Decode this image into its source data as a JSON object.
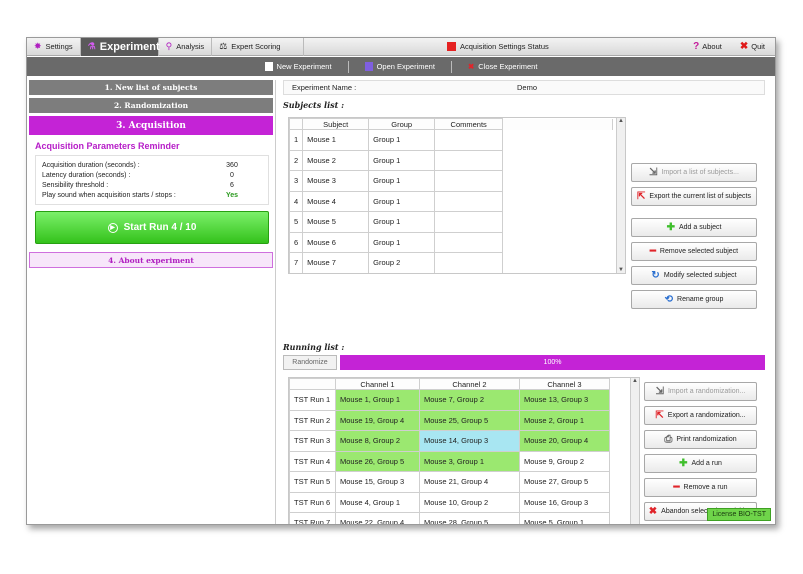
{
  "tabs": [
    {
      "label": "Settings",
      "icon": "gear-icon"
    },
    {
      "label": "Experiment",
      "icon": "flask-icon",
      "active": true
    },
    {
      "label": "Analysis",
      "icon": "magnifier-icon"
    },
    {
      "label": "Expert Scoring",
      "icon": "scale-icon"
    }
  ],
  "status": {
    "label": "Acquisition Settings Status",
    "color": "#e52121"
  },
  "top_right": {
    "about": "About",
    "quit": "Quit"
  },
  "toolbar": {
    "new": "New Experiment",
    "open": "Open Experiment",
    "close": "Close Experiment"
  },
  "steps": {
    "s1": "1. New list of subjects",
    "s2": "2. Randomization",
    "s3": "3. Acquisition",
    "s4": "4. About experiment"
  },
  "reminder": {
    "title": "Acquisition Parameters Reminder",
    "rows": [
      {
        "k": "Acquisition duration (seconds) :",
        "v": "360"
      },
      {
        "k": "Latency duration (seconds) :",
        "v": "0"
      },
      {
        "k": "Sensibility threshold :",
        "v": "6"
      },
      {
        "k": "Play sound when acquisition starts / stops :",
        "v": "Yes"
      }
    ]
  },
  "start_button": "Start Run 4 / 10",
  "experiment": {
    "label": "Experiment Name :",
    "value": "Demo"
  },
  "subjects": {
    "title": "Subjects list :",
    "headers": [
      "Subject",
      "Group",
      "Comments"
    ],
    "rows": [
      [
        "1",
        "Mouse 1",
        "Group 1"
      ],
      [
        "2",
        "Mouse 2",
        "Group 1"
      ],
      [
        "3",
        "Mouse 3",
        "Group 1"
      ],
      [
        "4",
        "Mouse 4",
        "Group 1"
      ],
      [
        "5",
        "Mouse 5",
        "Group 1"
      ],
      [
        "6",
        "Mouse 6",
        "Group 1"
      ],
      [
        "7",
        "Mouse 7",
        "Group 2"
      ]
    ],
    "buttons": {
      "import": "Import a list of subjects...",
      "export": "Export the current list of subjects",
      "add": "Add a subject",
      "remove": "Remove selected subject",
      "modify": "Modify selected subject",
      "rename": "Rename group"
    }
  },
  "running": {
    "title": "Running list :",
    "randomize": "Randomize",
    "progress": "100%",
    "progress_value": 100,
    "headers": [
      "Channel 1",
      "Channel 2",
      "Channel 3"
    ],
    "rows": [
      [
        "TST Run 1",
        "Mouse 1, Group 1",
        "Mouse 7, Group 2",
        "Mouse 13, Group 3"
      ],
      [
        "TST Run 2",
        "Mouse 19, Group 4",
        "Mouse 25, Group 5",
        "Mouse 2, Group 1"
      ],
      [
        "TST Run 3",
        "Mouse 8, Group 2",
        "Mouse 14, Group 3",
        "Mouse 20, Group 4"
      ],
      [
        "TST Run 4",
        "Mouse 26, Group 5",
        "Mouse 3, Group 1",
        "Mouse 9, Group 2"
      ],
      [
        "TST Run 5",
        "Mouse 15, Group 3",
        "Mouse 21, Group 4",
        "Mouse 27, Group 5"
      ],
      [
        "TST Run 6",
        "Mouse 4, Group 1",
        "Mouse 10, Group 2",
        "Mouse 16, Group 3"
      ],
      [
        "TST Run 7",
        "Mouse 22, Group 4",
        "Mouse 28, Group 5",
        "Mouse 5, Group 1"
      ]
    ],
    "buttons": {
      "import": "Import a randomization...",
      "export": "Export a randomization...",
      "print": "Print randomization",
      "add": "Add a run",
      "remove": "Remove a run",
      "abandon": "Abandon selected acquisition"
    }
  },
  "license": "License BIO-TST"
}
